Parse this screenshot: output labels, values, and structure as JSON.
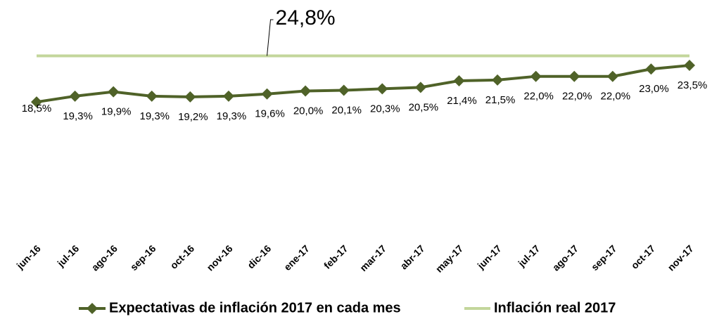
{
  "chart_data": {
    "type": "line",
    "categories": [
      "jun-16",
      "jul-16",
      "ago-16",
      "sep-16",
      "oct-16",
      "nov-16",
      "dic-16",
      "ene-17",
      "feb-17",
      "mar-17",
      "abr-17",
      "may-17",
      "jun-17",
      "jul-17",
      "ago-17",
      "sep-17",
      "oct-17",
      "nov-17"
    ],
    "series": [
      {
        "name": "Expectativas de inflación 2017 en cada mes",
        "color": "#4f6228",
        "marker": "diamond",
        "values": [
          18.5,
          19.3,
          19.9,
          19.3,
          19.2,
          19.3,
          19.6,
          20.0,
          20.1,
          20.3,
          20.5,
          21.4,
          21.5,
          22.0,
          22.0,
          22.0,
          23.0,
          23.5
        ],
        "value_labels": [
          "18,5%",
          "19,3%",
          "19,9%",
          "19,3%",
          "19,2%",
          "19,3%",
          "19,6%",
          "20,0%",
          "20,1%",
          "20,3%",
          "20,5%",
          "21,4%",
          "21,5%",
          "22,0%",
          "22,0%",
          "22,0%",
          "23,0%",
          "23,5%"
        ]
      },
      {
        "name": "Inflación real 2017",
        "color": "#c3d69b",
        "marker": "none",
        "values": [
          24.8,
          24.8,
          24.8,
          24.8,
          24.8,
          24.8,
          24.8,
          24.8,
          24.8,
          24.8,
          24.8,
          24.8,
          24.8,
          24.8,
          24.8,
          24.8,
          24.8,
          24.8
        ]
      }
    ],
    "annotation": "24,8%",
    "ylim": [
      0,
      26
    ],
    "grid": false,
    "legend": "bottom"
  }
}
